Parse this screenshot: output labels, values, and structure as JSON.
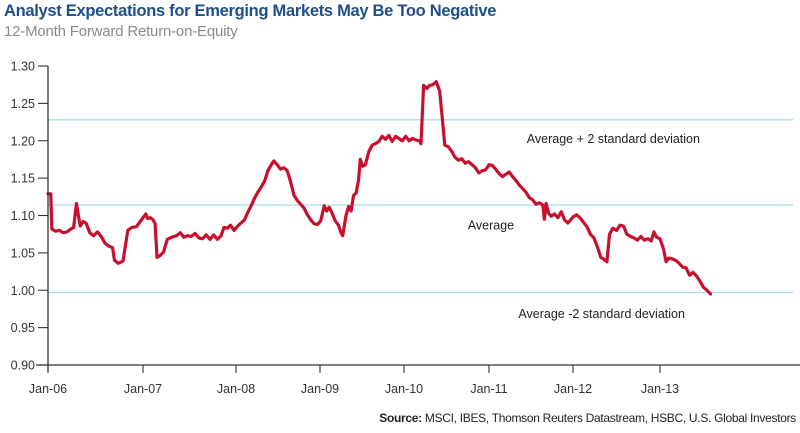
{
  "header": {
    "title": "Analyst Expectations for Emerging Markets May Be Too Negative",
    "subtitle": "12-Month Forward Return-on-Equity"
  },
  "footer": {
    "source_label": "Source:",
    "source_text": " MSCI, IBES, Thomson Reuters Datastream, HSBC, U.S. Global Investors"
  },
  "chart_data": {
    "type": "line",
    "title": "Analyst Expectations for Emerging Markets May Be Too Negative",
    "subtitle": "12-Month Forward Return-on-Equity",
    "xlabel": "",
    "ylabel": "",
    "ylim": [
      0.9,
      1.3
    ],
    "xlim": [
      2006.0,
      2013.6
    ],
    "grid": false,
    "y_ticks": [
      "1.30",
      "1.25",
      "1.20",
      "1.15",
      "1.10",
      "1.05",
      "1.00",
      "0.95",
      "0.90"
    ],
    "y_tick_values": [
      1.3,
      1.25,
      1.2,
      1.15,
      1.1,
      1.05,
      1.0,
      0.95,
      0.9
    ],
    "x_ticks": [
      "Jan-06",
      "Jan-07",
      "Jan-08",
      "Jan-09",
      "Jan-10",
      "Jan-11",
      "Jan-12",
      "Jan-13"
    ],
    "x_tick_values": [
      2006,
      2007,
      2008,
      2009,
      2010,
      2011,
      2012,
      2013
    ],
    "reference_lines": [
      {
        "name": "Average + 2 standard deviation",
        "value": 1.228
      },
      {
        "name": "Average",
        "value": 1.114
      },
      {
        "name": "Average -2 standard deviation",
        "value": 0.997
      }
    ],
    "annotations": [
      {
        "text": "Average + 2 standard deviation",
        "x": 2011.45,
        "y": 1.197
      },
      {
        "text": "Average",
        "x": 2010.75,
        "y": 1.081
      },
      {
        "text": "Average -2 standard deviation",
        "x": 2011.35,
        "y": 0.963
      }
    ],
    "colors": {
      "series": "#c8102e",
      "reference": "#a8daf0",
      "axis": "#333333"
    },
    "series": [
      {
        "name": "12-Month Forward ROE",
        "points": [
          [
            2006.0,
            1.129
          ],
          [
            2006.03,
            1.129
          ],
          [
            2006.04,
            1.082
          ],
          [
            2006.08,
            1.079
          ],
          [
            2006.12,
            1.08
          ],
          [
            2006.16,
            1.077
          ],
          [
            2006.2,
            1.078
          ],
          [
            2006.24,
            1.082
          ],
          [
            2006.27,
            1.084
          ],
          [
            2006.3,
            1.116
          ],
          [
            2006.32,
            1.1
          ],
          [
            2006.34,
            1.086
          ],
          [
            2006.37,
            1.092
          ],
          [
            2006.4,
            1.09
          ],
          [
            2006.44,
            1.077
          ],
          [
            2006.48,
            1.073
          ],
          [
            2006.52,
            1.078
          ],
          [
            2006.56,
            1.072
          ],
          [
            2006.6,
            1.063
          ],
          [
            2006.64,
            1.059
          ],
          [
            2006.68,
            1.057
          ],
          [
            2006.7,
            1.04
          ],
          [
            2006.74,
            1.036
          ],
          [
            2006.79,
            1.039
          ],
          [
            2006.84,
            1.08
          ],
          [
            2006.88,
            1.084
          ],
          [
            2006.93,
            1.085
          ],
          [
            2006.97,
            1.092
          ],
          [
            2007.0,
            1.097
          ],
          [
            2007.03,
            1.102
          ],
          [
            2007.05,
            1.096
          ],
          [
            2007.08,
            1.097
          ],
          [
            2007.11,
            1.094
          ],
          [
            2007.13,
            1.089
          ],
          [
            2007.15,
            1.044
          ],
          [
            2007.18,
            1.046
          ],
          [
            2007.22,
            1.051
          ],
          [
            2007.26,
            1.068
          ],
          [
            2007.31,
            1.071
          ],
          [
            2007.36,
            1.073
          ],
          [
            2007.4,
            1.077
          ],
          [
            2007.44,
            1.071
          ],
          [
            2007.48,
            1.073
          ],
          [
            2007.52,
            1.072
          ],
          [
            2007.56,
            1.076
          ],
          [
            2007.6,
            1.07
          ],
          [
            2007.64,
            1.069
          ],
          [
            2007.68,
            1.074
          ],
          [
            2007.72,
            1.068
          ],
          [
            2007.76,
            1.074
          ],
          [
            2007.8,
            1.068
          ],
          [
            2007.84,
            1.073
          ],
          [
            2007.87,
            1.084
          ],
          [
            2007.91,
            1.083
          ],
          [
            2007.94,
            1.087
          ],
          [
            2007.98,
            1.08
          ],
          [
            2008.02,
            1.086
          ],
          [
            2008.06,
            1.09
          ],
          [
            2008.1,
            1.094
          ],
          [
            2008.14,
            1.104
          ],
          [
            2008.18,
            1.113
          ],
          [
            2008.22,
            1.123
          ],
          [
            2008.26,
            1.131
          ],
          [
            2008.3,
            1.138
          ],
          [
            2008.34,
            1.146
          ],
          [
            2008.38,
            1.16
          ],
          [
            2008.42,
            1.168
          ],
          [
            2008.45,
            1.173
          ],
          [
            2008.49,
            1.168
          ],
          [
            2008.53,
            1.162
          ],
          [
            2008.57,
            1.164
          ],
          [
            2008.61,
            1.16
          ],
          [
            2008.65,
            1.145
          ],
          [
            2008.69,
            1.127
          ],
          [
            2008.73,
            1.12
          ],
          [
            2008.77,
            1.115
          ],
          [
            2008.81,
            1.11
          ],
          [
            2008.85,
            1.101
          ],
          [
            2008.89,
            1.094
          ],
          [
            2008.93,
            1.089
          ],
          [
            2008.97,
            1.088
          ],
          [
            2009.01,
            1.093
          ],
          [
            2009.05,
            1.113
          ],
          [
            2009.08,
            1.106
          ],
          [
            2009.11,
            1.111
          ],
          [
            2009.14,
            1.104
          ],
          [
            2009.18,
            1.093
          ],
          [
            2009.22,
            1.087
          ],
          [
            2009.25,
            1.077
          ],
          [
            2009.27,
            1.073
          ],
          [
            2009.31,
            1.1
          ],
          [
            2009.34,
            1.112
          ],
          [
            2009.37,
            1.106
          ],
          [
            2009.4,
            1.127
          ],
          [
            2009.43,
            1.13
          ],
          [
            2009.46,
            1.148
          ],
          [
            2009.48,
            1.175
          ],
          [
            2009.51,
            1.166
          ],
          [
            2009.54,
            1.168
          ],
          [
            2009.58,
            1.185
          ],
          [
            2009.62,
            1.194
          ],
          [
            2009.66,
            1.196
          ],
          [
            2009.7,
            1.199
          ],
          [
            2009.74,
            1.206
          ],
          [
            2009.78,
            1.202
          ],
          [
            2009.82,
            1.207
          ],
          [
            2009.86,
            1.199
          ],
          [
            2009.9,
            1.206
          ],
          [
            2009.94,
            1.203
          ],
          [
            2009.98,
            1.2
          ],
          [
            2010.02,
            1.206
          ],
          [
            2010.06,
            1.2
          ],
          [
            2010.1,
            1.203
          ],
          [
            2010.14,
            1.201
          ],
          [
            2010.18,
            1.2
          ],
          [
            2010.2,
            1.196
          ],
          [
            2010.23,
            1.274
          ],
          [
            2010.27,
            1.27
          ],
          [
            2010.3,
            1.274
          ],
          [
            2010.34,
            1.275
          ],
          [
            2010.38,
            1.279
          ],
          [
            2010.42,
            1.266
          ],
          [
            2010.45,
            1.23
          ],
          [
            2010.48,
            1.194
          ],
          [
            2010.52,
            1.192
          ],
          [
            2010.56,
            1.186
          ],
          [
            2010.6,
            1.178
          ],
          [
            2010.64,
            1.174
          ],
          [
            2010.68,
            1.176
          ],
          [
            2010.72,
            1.17
          ],
          [
            2010.76,
            1.172
          ],
          [
            2010.8,
            1.168
          ],
          [
            2010.84,
            1.164
          ],
          [
            2010.88,
            1.157
          ],
          [
            2010.92,
            1.16
          ],
          [
            2010.96,
            1.161
          ],
          [
            2011.0,
            1.168
          ],
          [
            2011.04,
            1.167
          ],
          [
            2011.08,
            1.162
          ],
          [
            2011.12,
            1.156
          ],
          [
            2011.16,
            1.152
          ],
          [
            2011.2,
            1.155
          ],
          [
            2011.24,
            1.158
          ],
          [
            2011.28,
            1.152
          ],
          [
            2011.32,
            1.147
          ],
          [
            2011.36,
            1.141
          ],
          [
            2011.4,
            1.136
          ],
          [
            2011.44,
            1.131
          ],
          [
            2011.48,
            1.124
          ],
          [
            2011.52,
            1.121
          ],
          [
            2011.56,
            1.115
          ],
          [
            2011.6,
            1.117
          ],
          [
            2011.64,
            1.114
          ],
          [
            2011.66,
            1.095
          ],
          [
            2011.68,
            1.116
          ],
          [
            2011.71,
            1.103
          ],
          [
            2011.74,
            1.099
          ],
          [
            2011.78,
            1.102
          ],
          [
            2011.82,
            1.097
          ],
          [
            2011.86,
            1.105
          ],
          [
            2011.9,
            1.094
          ],
          [
            2011.94,
            1.09
          ],
          [
            2012.0,
            1.098
          ],
          [
            2012.04,
            1.101
          ],
          [
            2012.08,
            1.097
          ],
          [
            2012.12,
            1.091
          ],
          [
            2012.16,
            1.085
          ],
          [
            2012.2,
            1.075
          ],
          [
            2012.24,
            1.07
          ],
          [
            2012.28,
            1.058
          ],
          [
            2012.32,
            1.044
          ],
          [
            2012.36,
            1.041
          ],
          [
            2012.39,
            1.038
          ],
          [
            2012.42,
            1.075
          ],
          [
            2012.46,
            1.083
          ],
          [
            2012.5,
            1.08
          ],
          [
            2012.54,
            1.087
          ],
          [
            2012.58,
            1.086
          ],
          [
            2012.62,
            1.075
          ],
          [
            2012.66,
            1.072
          ],
          [
            2012.7,
            1.07
          ],
          [
            2012.74,
            1.067
          ],
          [
            2012.78,
            1.072
          ],
          [
            2012.82,
            1.067
          ],
          [
            2012.86,
            1.069
          ],
          [
            2012.9,
            1.066
          ],
          [
            2012.93,
            1.078
          ],
          [
            2012.96,
            1.071
          ],
          [
            2013.0,
            1.069
          ],
          [
            2013.04,
            1.055
          ],
          [
            2013.07,
            1.038
          ],
          [
            2013.1,
            1.043
          ],
          [
            2013.14,
            1.042
          ],
          [
            2013.18,
            1.04
          ],
          [
            2013.22,
            1.036
          ],
          [
            2013.26,
            1.031
          ],
          [
            2013.3,
            1.03
          ],
          [
            2013.34,
            1.02
          ],
          [
            2013.38,
            1.024
          ],
          [
            2013.42,
            1.019
          ],
          [
            2013.46,
            1.012
          ],
          [
            2013.5,
            1.004
          ],
          [
            2013.54,
            1.0
          ],
          [
            2013.58,
            0.995
          ]
        ]
      }
    ]
  }
}
